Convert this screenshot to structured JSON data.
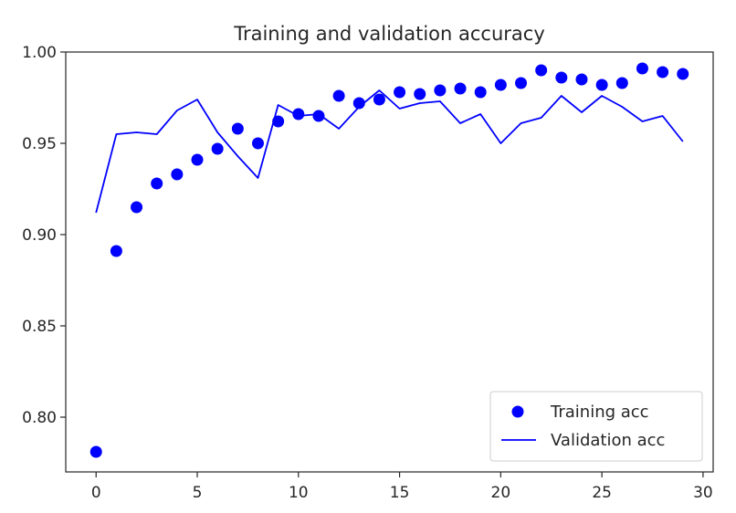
{
  "chart_data": {
    "type": "scatter",
    "title": "Training and validation accuracy",
    "xlabel": "",
    "ylabel": "",
    "xlim": [
      -1.5,
      30.5
    ],
    "ylim": [
      0.77,
      1.0
    ],
    "xticks": [
      0,
      5,
      10,
      15,
      20,
      25,
      30
    ],
    "yticks": [
      0.8,
      0.85,
      0.9,
      0.95,
      1.0
    ],
    "xtick_labels": [
      "0",
      "5",
      "10",
      "15",
      "20",
      "25",
      "30"
    ],
    "ytick_labels": [
      "0.80",
      "0.85",
      "0.90",
      "0.95",
      "1.00"
    ],
    "grid": false,
    "legend_placement": "lower right",
    "x": [
      0,
      1,
      2,
      3,
      4,
      5,
      6,
      7,
      8,
      9,
      10,
      11,
      12,
      13,
      14,
      15,
      16,
      17,
      18,
      19,
      20,
      21,
      22,
      23,
      24,
      25,
      26,
      27,
      28,
      29
    ],
    "series": [
      {
        "name": "Training acc",
        "style": "markers",
        "color": "#0000ff",
        "values": [
          0.781,
          0.891,
          0.915,
          0.928,
          0.933,
          0.941,
          0.947,
          0.958,
          0.95,
          0.962,
          0.966,
          0.965,
          0.976,
          0.972,
          0.974,
          0.978,
          0.977,
          0.979,
          0.98,
          0.978,
          0.982,
          0.983,
          0.99,
          0.986,
          0.985,
          0.982,
          0.983,
          0.991,
          0.989,
          0.988
        ]
      },
      {
        "name": "Validation acc",
        "style": "line",
        "color": "#0000ff",
        "values": [
          0.912,
          0.955,
          0.956,
          0.955,
          0.968,
          0.974,
          0.956,
          0.943,
          0.931,
          0.971,
          0.965,
          0.966,
          0.958,
          0.97,
          0.979,
          0.969,
          0.972,
          0.973,
          0.961,
          0.966,
          0.95,
          0.961,
          0.964,
          0.976,
          0.967,
          0.976,
          0.97,
          0.962,
          0.965,
          0.951
        ]
      }
    ]
  }
}
